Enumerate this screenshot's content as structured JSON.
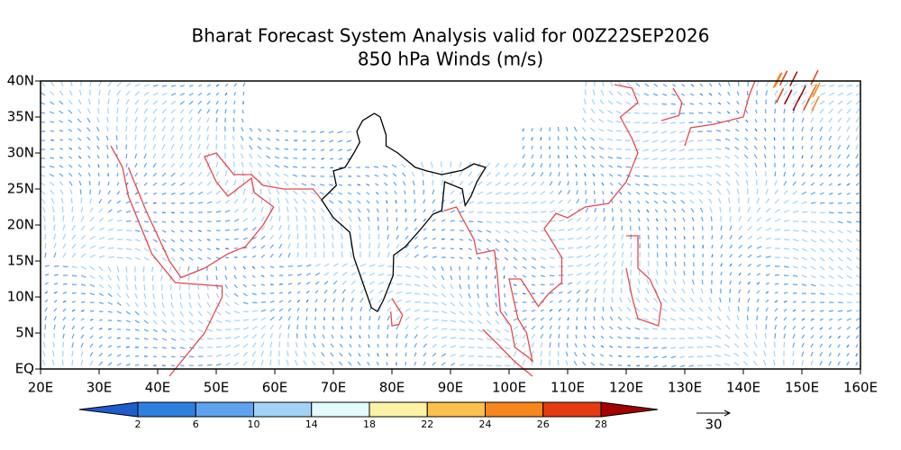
{
  "header": {
    "title": "Bharat Forecast System Analysis valid for 00Z22SEP2026",
    "subtitle": "850 hPa Winds (m/s)"
  },
  "map": {
    "lat_labels": [
      "40N",
      "35N",
      "30N",
      "25N",
      "20N",
      "15N",
      "10N",
      "5N",
      "EQ"
    ],
    "lon_labels": [
      "20E",
      "30E",
      "40E",
      "50E",
      "60E",
      "70E",
      "80E",
      "90E",
      "100E",
      "110E",
      "120E",
      "130E",
      "140E",
      "150E",
      "160E"
    ]
  },
  "colorbar": {
    "labels": [
      "2",
      "6",
      "10",
      "14",
      "18",
      "22",
      "24",
      "26",
      "28"
    ],
    "colors": [
      "#1f5ccc",
      "#2f7fe0",
      "#5ea3ee",
      "#a3d2f7",
      "#e2fcfc",
      "#fdf3a6",
      "#fcc04c",
      "#f7861e",
      "#e43c10",
      "#a30000"
    ]
  },
  "reference_vector": {
    "label": "30"
  }
}
